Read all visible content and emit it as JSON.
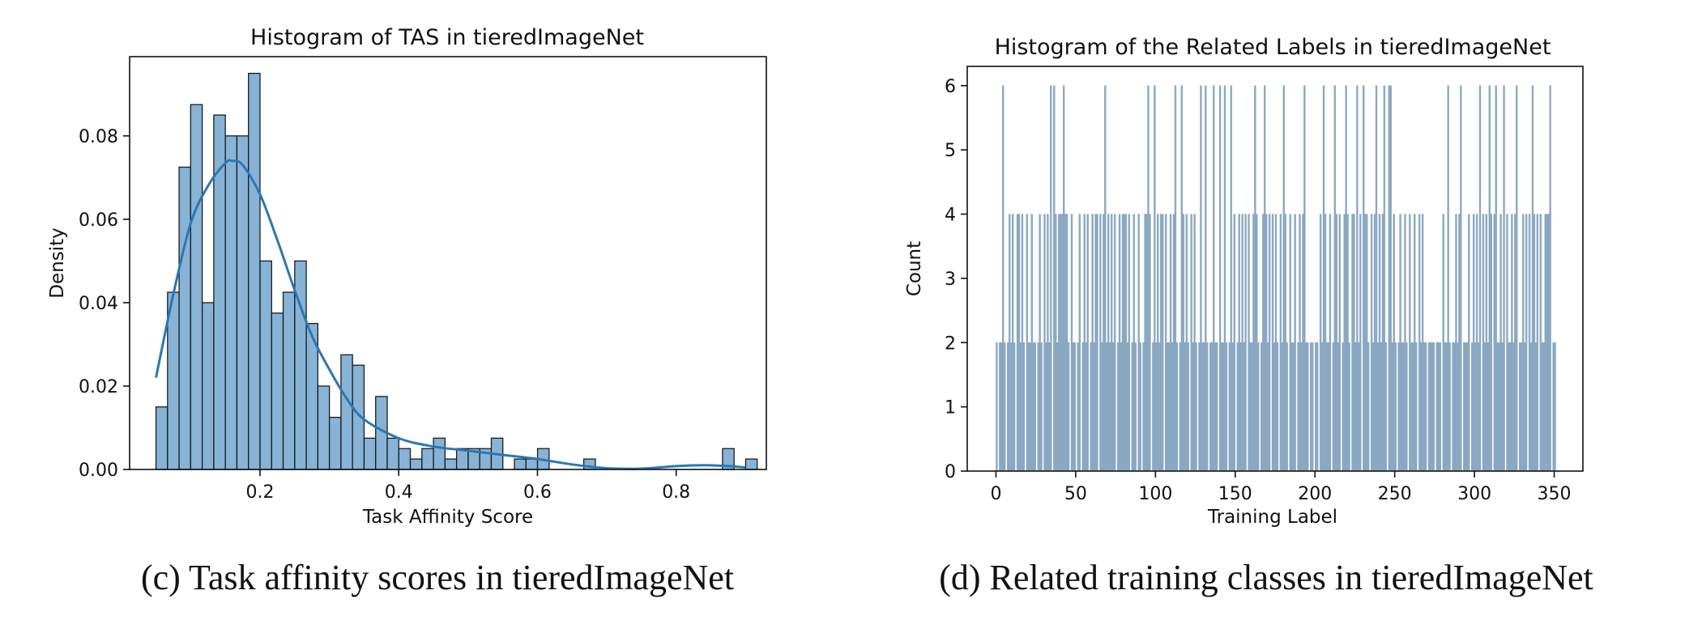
{
  "chart_data": [
    {
      "type": "bar",
      "title": "Histogram of TAS in tieredImageNet",
      "xlabel": "Task Affinity Score",
      "ylabel": "Density",
      "caption": "(c) Task affinity scores in tieredImageNet",
      "xlim": [
        0.012,
        0.93
      ],
      "ylim": [
        0,
        0.099
      ],
      "xticks": [
        0.2,
        0.4,
        0.6,
        0.8
      ],
      "xtick_labels": [
        "0.2",
        "0.4",
        "0.6",
        "0.8"
      ],
      "yticks": [
        0.0,
        0.02,
        0.04,
        0.06,
        0.08
      ],
      "ytick_labels": [
        "0.00",
        "0.02",
        "0.04",
        "0.06",
        "0.08"
      ],
      "bin_start": 0.05,
      "bin_width": 0.01667,
      "values": [
        0.015,
        0.0425,
        0.0725,
        0.0875,
        0.04,
        0.085,
        0.08,
        0.08,
        0.095,
        0.05,
        0.0375,
        0.0425,
        0.05,
        0.035,
        0.02,
        0.0125,
        0.0275,
        0.025,
        0.0075,
        0.0175,
        0.0075,
        0.005,
        0.0025,
        0.005,
        0.0075,
        0.0025,
        0.005,
        0.005,
        0.005,
        0.0075,
        0,
        0.0025,
        0.0025,
        0.005,
        0,
        0,
        0,
        0.0025,
        0,
        0,
        0,
        0,
        0,
        0,
        0,
        0,
        0,
        0,
        0,
        0.005,
        0,
        0.0025
      ],
      "grid": false,
      "kde": {
        "x": [
          0.05,
          0.075,
          0.1,
          0.125,
          0.15,
          0.16,
          0.175,
          0.2,
          0.225,
          0.25,
          0.275,
          0.3,
          0.325,
          0.35,
          0.4,
          0.45,
          0.5,
          0.55,
          0.6,
          0.65,
          0.7,
          0.75,
          0.8,
          0.85,
          0.9
        ],
        "y": [
          0.022,
          0.042,
          0.059,
          0.068,
          0.0735,
          0.074,
          0.073,
          0.066,
          0.055,
          0.043,
          0.032,
          0.024,
          0.017,
          0.012,
          0.0075,
          0.0055,
          0.0045,
          0.0035,
          0.0025,
          0.0012,
          0.0003,
          0.0002,
          0.0008,
          0.001,
          0.0005
        ]
      }
    },
    {
      "type": "bar",
      "title": "Histogram of the Related Labels in tieredImageNet",
      "xlabel": "Training Label",
      "ylabel": "Count",
      "caption": "(d) Related training classes in tieredImageNet",
      "xlim": [
        -18,
        368
      ],
      "ylim": [
        0,
        6.3
      ],
      "xticks": [
        0,
        50,
        100,
        150,
        200,
        250,
        300,
        350
      ],
      "xtick_labels": [
        "0",
        "50",
        "100",
        "150",
        "200",
        "250",
        "300",
        "350"
      ],
      "yticks": [
        0,
        1,
        2,
        3,
        4,
        5,
        6
      ],
      "ytick_labels": [
        "0",
        "1",
        "2",
        "3",
        "4",
        "5",
        "6"
      ],
      "bin_width": 1,
      "labels_count_6": [
        4,
        34,
        36,
        42,
        68,
        95,
        99,
        112,
        116,
        128,
        131,
        136,
        140,
        143,
        147,
        162,
        168,
        180,
        193,
        205,
        212,
        219,
        226,
        230,
        238,
        243,
        246,
        247,
        283,
        291,
        303,
        309,
        313,
        318,
        326,
        336,
        347
      ],
      "labels_count_4": [
        8,
        10,
        13,
        14,
        16,
        19,
        22,
        27,
        30,
        32,
        37,
        39,
        40,
        41,
        43,
        44,
        47,
        52,
        55,
        57,
        60,
        62,
        63,
        65,
        67,
        70,
        72,
        74,
        77,
        79,
        80,
        81,
        83,
        86,
        89,
        93,
        94,
        96,
        101,
        103,
        104,
        106,
        109,
        111,
        117,
        119,
        122,
        124,
        149,
        152,
        154,
        156,
        158,
        161,
        163,
        167,
        169,
        171,
        173,
        175,
        178,
        181,
        184,
        187,
        190,
        192,
        203,
        206,
        209,
        213,
        215,
        218,
        220,
        223,
        224,
        228,
        231,
        232,
        235,
        237,
        240,
        242,
        249,
        253,
        256,
        259,
        262,
        265,
        267,
        280,
        288,
        290,
        296,
        299,
        301,
        305,
        307,
        310,
        312,
        316,
        320,
        323,
        325,
        330,
        332,
        334,
        337,
        339,
        341,
        344,
        345,
        346
      ],
      "count_2_range": [
        0,
        350
      ],
      "gaps": [
        1,
        6,
        12,
        18,
        25,
        29,
        35,
        46,
        50,
        53,
        58,
        64,
        75,
        84,
        88,
        91,
        97,
        105,
        114,
        121,
        126,
        133,
        139,
        145,
        150,
        157,
        165,
        172,
        177,
        183,
        188,
        196,
        199,
        202,
        210,
        216,
        222,
        229,
        234,
        245,
        251,
        258,
        264,
        270,
        275,
        279,
        285,
        292,
        297,
        304,
        311,
        319,
        327,
        333,
        340,
        348
      ],
      "grid": false
    }
  ],
  "colors": {
    "left_bar_fill": "#86b3d6",
    "left_bar_edge": "#1c1c1c",
    "kde_line": "#2a78b5",
    "right_bar_fill": "#8aa8c2",
    "axis": "#111111"
  }
}
